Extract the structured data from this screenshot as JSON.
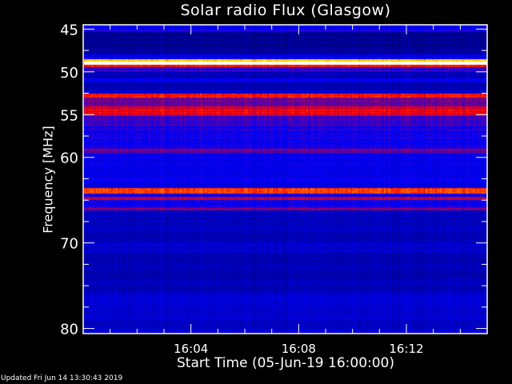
{
  "chart_data": {
    "type": "heatmap",
    "title": "Solar radio Flux (Glasgow)",
    "xlabel": "Start Time (05-Jun-19 16:00:00)",
    "ylabel": "Frequency [MHz]",
    "x_range": [
      "16:00",
      "16:15"
    ],
    "x_ticks": [
      "16:04",
      "16:08",
      "16:12"
    ],
    "ylim": [
      44.5,
      80.6
    ],
    "y_ticks": [
      45,
      50,
      55,
      60,
      70,
      80
    ],
    "y_reversed": true,
    "colormap": "blue-red-yellow-white",
    "intensity_bands": [
      {
        "from": 44.5,
        "to": 45.3,
        "level": 0.5
      },
      {
        "from": 45.3,
        "to": 48.0,
        "level": 0.3
      },
      {
        "from": 48.0,
        "to": 48.5,
        "level": 0.45
      },
      {
        "from": 48.5,
        "to": 48.8,
        "level": 0.86
      },
      {
        "from": 48.8,
        "to": 49.2,
        "level": 1.0
      },
      {
        "from": 49.2,
        "to": 49.5,
        "level": 0.72
      },
      {
        "from": 49.5,
        "to": 50.0,
        "level": 0.52
      },
      {
        "from": 50.0,
        "to": 50.8,
        "level": 0.36
      },
      {
        "from": 50.8,
        "to": 51.2,
        "level": 0.46
      },
      {
        "from": 51.2,
        "to": 52.2,
        "level": 0.34
      },
      {
        "from": 52.2,
        "to": 52.5,
        "level": 0.42
      },
      {
        "from": 52.5,
        "to": 53.0,
        "level": 0.73
      },
      {
        "from": 53.0,
        "to": 54.0,
        "level": 0.6
      },
      {
        "from": 54.0,
        "to": 55.2,
        "level": 0.68
      },
      {
        "from": 55.2,
        "to": 56.3,
        "level": 0.56
      },
      {
        "from": 56.3,
        "to": 59.0,
        "level": 0.5
      },
      {
        "from": 59.0,
        "to": 59.5,
        "level": 0.58
      },
      {
        "from": 59.5,
        "to": 63.6,
        "level": 0.47
      },
      {
        "from": 63.6,
        "to": 64.2,
        "level": 0.76
      },
      {
        "from": 64.2,
        "to": 64.6,
        "level": 0.48
      },
      {
        "from": 64.6,
        "to": 65.0,
        "level": 0.66
      },
      {
        "from": 65.0,
        "to": 65.8,
        "level": 0.48
      },
      {
        "from": 65.8,
        "to": 66.2,
        "level": 0.58
      },
      {
        "from": 66.2,
        "to": 70.0,
        "level": 0.37
      },
      {
        "from": 70.0,
        "to": 71.0,
        "level": 0.42
      },
      {
        "from": 71.0,
        "to": 76.0,
        "level": 0.36
      },
      {
        "from": 76.0,
        "to": 78.0,
        "level": 0.42
      },
      {
        "from": 78.0,
        "to": 80.6,
        "level": 0.4
      }
    ]
  },
  "footer": {
    "updated": "Updated Fri Jun 14 13:30:43 2019"
  }
}
